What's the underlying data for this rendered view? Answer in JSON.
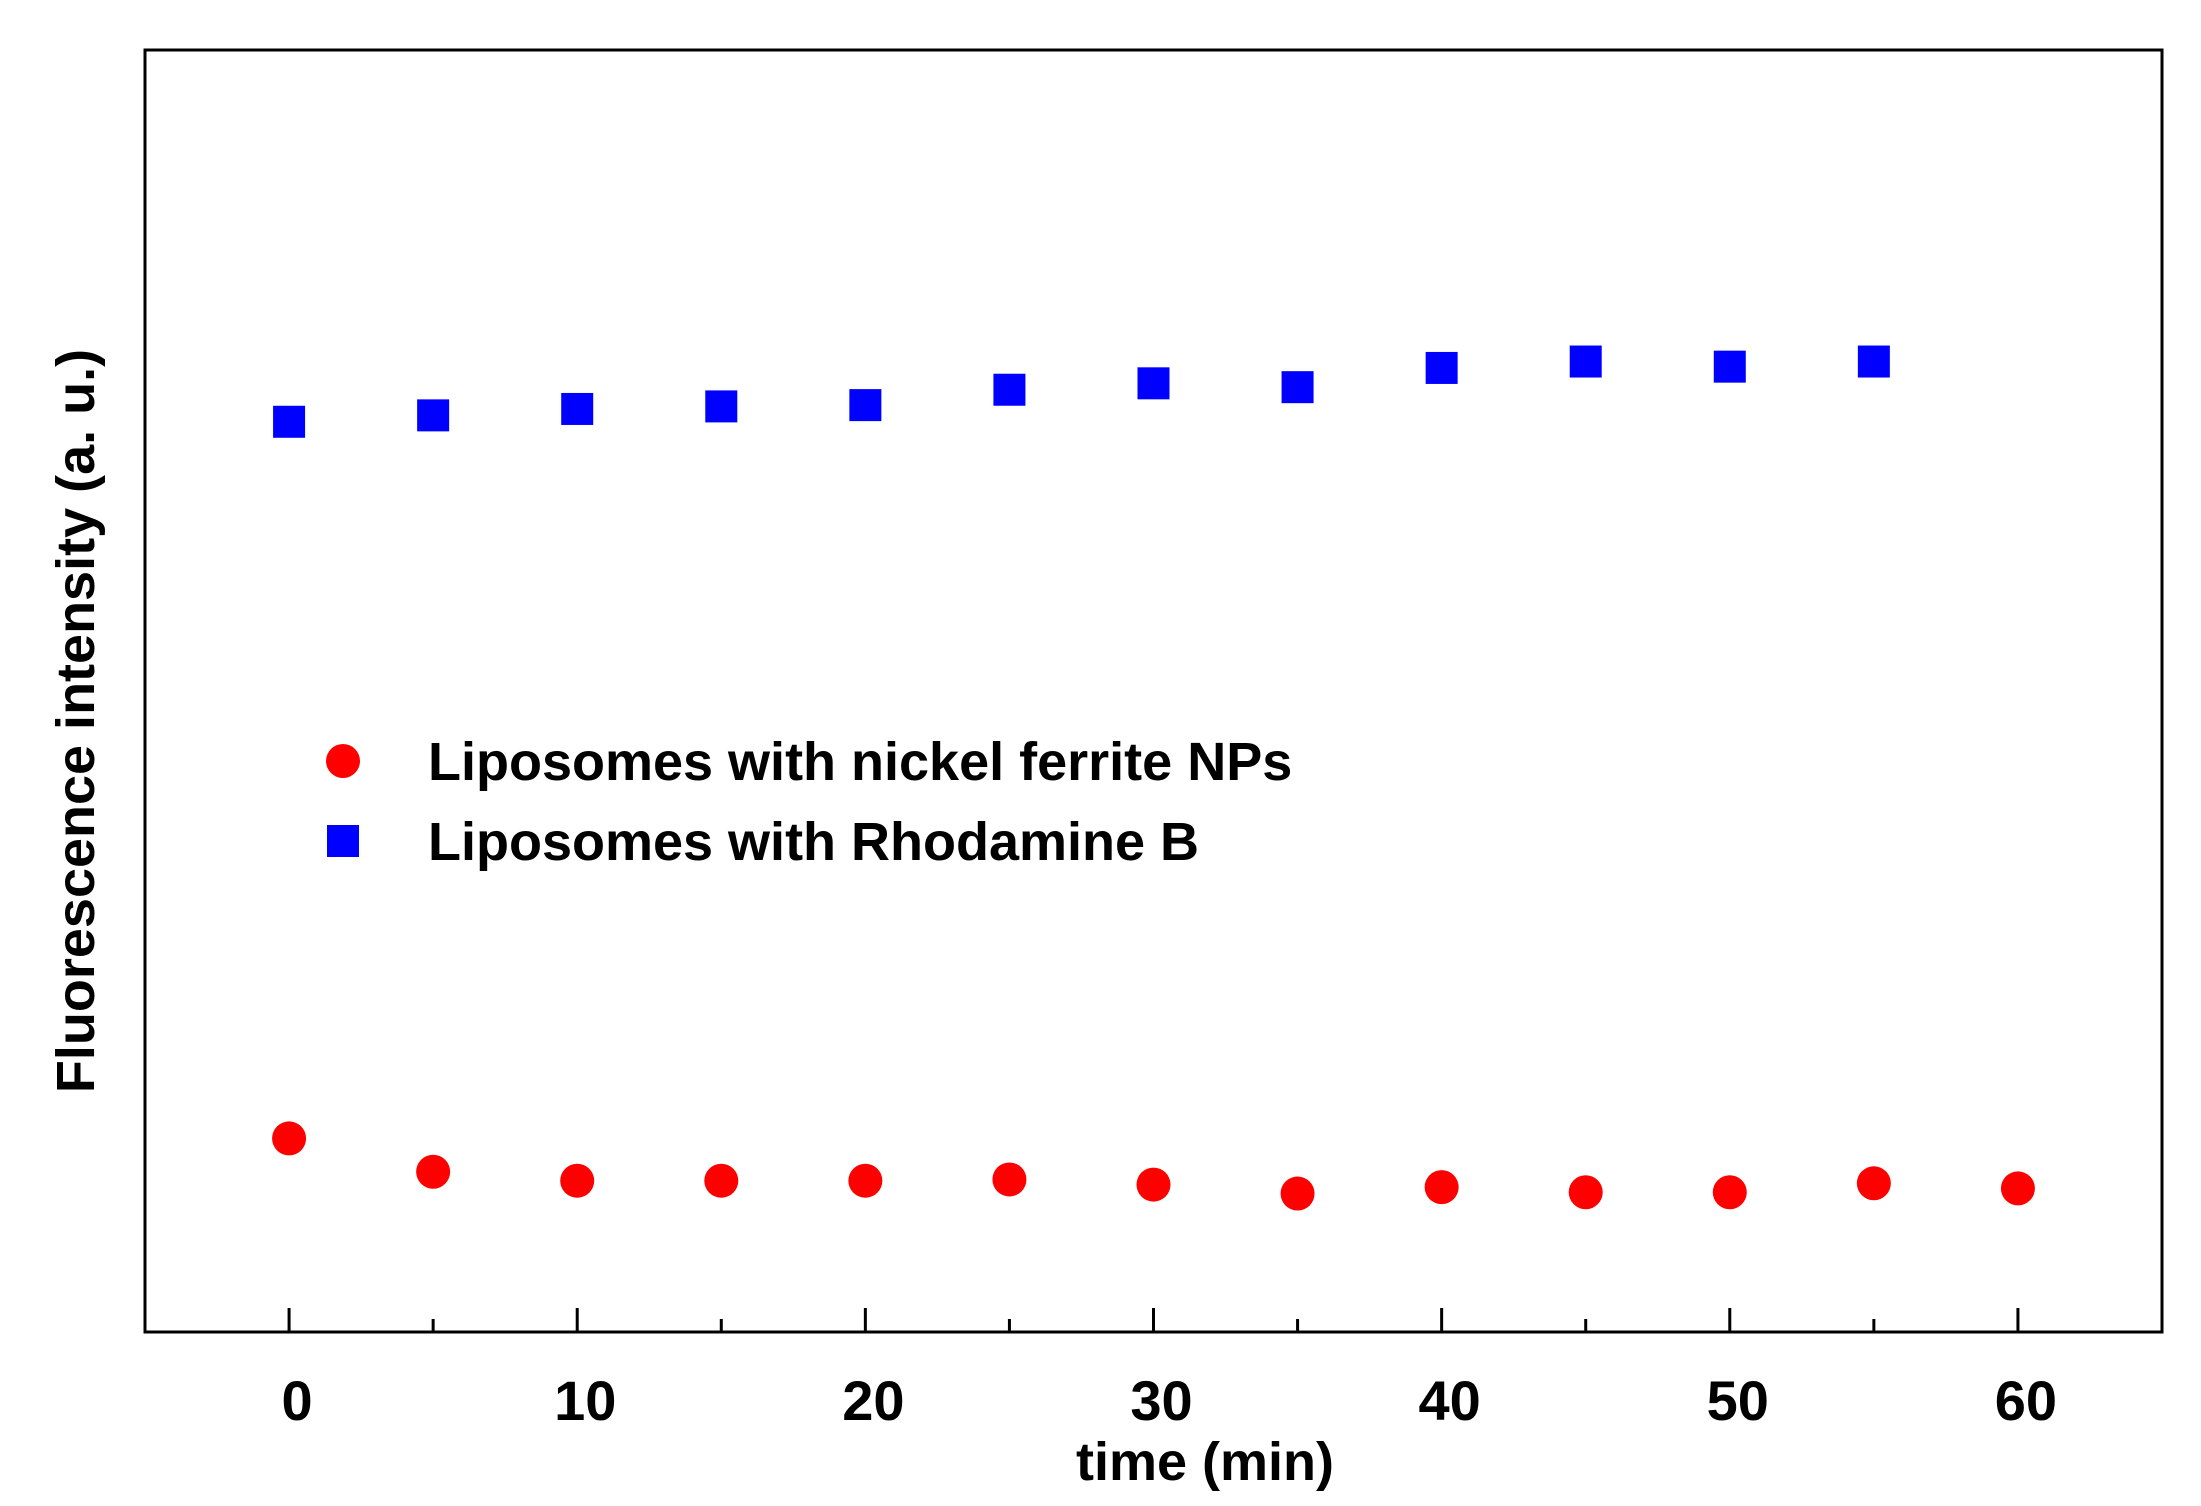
{
  "chart_data": {
    "type": "scatter",
    "title": "",
    "xlabel": "time (min)",
    "ylabel": "Fluorescence intensity (a. u.)",
    "xlim": [
      -5,
      65
    ],
    "ylim": [
      0,
      100
    ],
    "xticks": [
      0,
      10,
      20,
      30,
      40,
      50,
      60
    ],
    "x_minor_ticks": [
      5,
      15,
      25,
      35,
      45,
      55
    ],
    "y_tick_labels_shown": false,
    "grid": false,
    "legend_position": "center-left",
    "series": [
      {
        "name": "Liposomes with nickel ferrite NPs",
        "marker": "circle",
        "color": "#ff0000",
        "x": [
          0,
          5,
          10,
          15,
          20,
          25,
          30,
          35,
          40,
          45,
          50,
          55,
          60
        ],
        "y": [
          15.1,
          12.5,
          11.8,
          11.8,
          11.8,
          11.9,
          11.5,
          10.8,
          11.3,
          10.9,
          10.9,
          11.6,
          11.2
        ]
      },
      {
        "name": "Liposomes with Rhodamine B",
        "marker": "square",
        "color": "#0000ff",
        "x": [
          0,
          5,
          10,
          15,
          20,
          25,
          30,
          35,
          40,
          45,
          50,
          55
        ],
        "y": [
          71.0,
          71.5,
          72.0,
          72.2,
          72.3,
          73.5,
          74.0,
          73.7,
          75.2,
          75.7,
          75.3,
          75.7
        ]
      }
    ]
  }
}
